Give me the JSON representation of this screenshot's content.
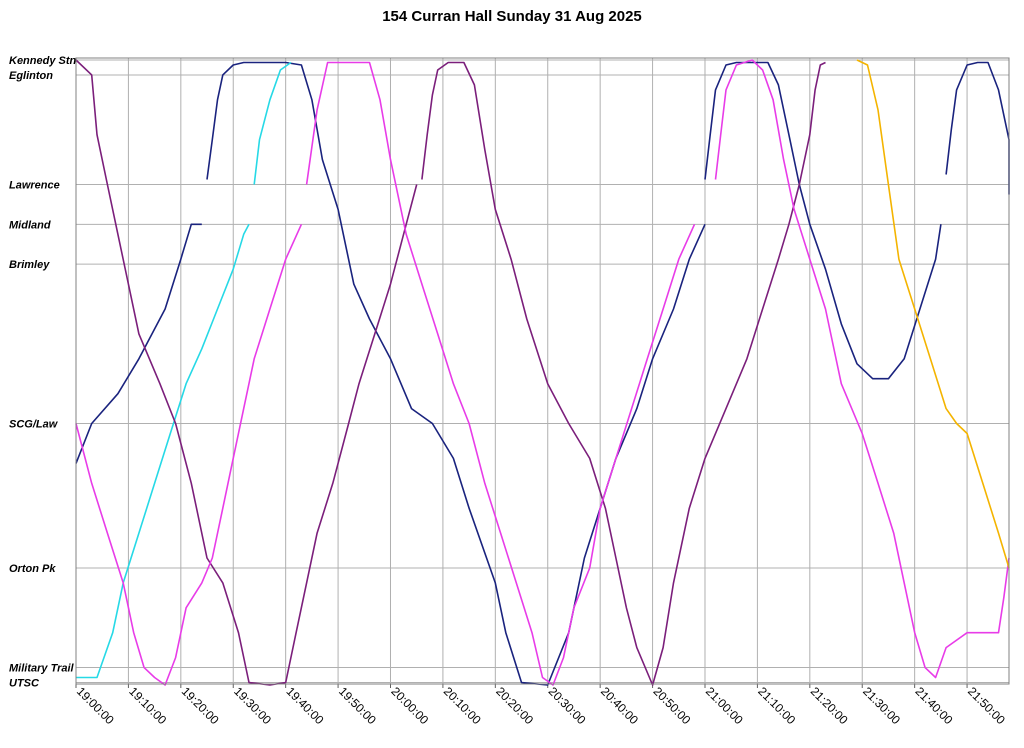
{
  "chart_data": {
    "type": "line",
    "title": "154 Curran Hall Sunday 31 Aug 2025",
    "xlabel": "",
    "ylabel": "",
    "x_axis": {
      "type": "time",
      "min": "19:00:00",
      "max": "21:58:00"
    },
    "x_ticks": [
      "19:00:00",
      "19:10:00",
      "19:20:00",
      "19:30:00",
      "19:40:00",
      "19:50:00",
      "20:00:00",
      "20:10:00",
      "20:20:00",
      "20:30:00",
      "20:40:00",
      "20:50:00",
      "21:00:00",
      "21:10:00",
      "21:20:00",
      "21:30:00",
      "21:40:00",
      "21:50:00"
    ],
    "stops": [
      {
        "name": "Kennedy Stn",
        "pos": 0
      },
      {
        "name": "Eglinton",
        "pos": 0.3
      },
      {
        "name": "Lawrence",
        "pos": 2.5
      },
      {
        "name": "Midland",
        "pos": 3.3
      },
      {
        "name": "Brimley",
        "pos": 4.1
      },
      {
        "name": "SCG/Law",
        "pos": 7.3
      },
      {
        "name": "Orton Pk",
        "pos": 10.2
      },
      {
        "name": "Military Trail",
        "pos": 12.2
      },
      {
        "name": "UTSC",
        "pos": 12.5
      }
    ],
    "y_range": [
      0,
      12.5
    ],
    "grid": true,
    "legend": "none",
    "series": [
      {
        "color": "#1a237e",
        "points": [
          [
            "19:00",
            8.1
          ],
          [
            "19:03",
            7.3
          ],
          [
            "19:08",
            6.7
          ],
          [
            "19:12",
            6.0
          ],
          [
            "19:17",
            5.0
          ],
          [
            "19:20",
            4.0
          ],
          [
            "19:22",
            3.3
          ],
          [
            "19:24",
            3.3
          ]
        ]
      },
      {
        "color": "#1a237e",
        "points": [
          [
            "19:25",
            2.4
          ],
          [
            "19:26",
            1.6
          ],
          [
            "19:27",
            0.8
          ],
          [
            "19:28",
            0.3
          ],
          [
            "19:30",
            0.1
          ],
          [
            "19:32",
            0.05
          ],
          [
            "19:40",
            0.05
          ],
          [
            "19:43",
            0.1
          ],
          [
            "19:45",
            0.8
          ],
          [
            "19:47",
            2.0
          ],
          [
            "19:50",
            3.0
          ],
          [
            "19:53",
            4.5
          ],
          [
            "19:56",
            5.2
          ],
          [
            "20:00",
            6.0
          ],
          [
            "20:04",
            7.0
          ],
          [
            "20:08",
            7.3
          ],
          [
            "20:12",
            8.0
          ],
          [
            "20:15",
            9.0
          ],
          [
            "20:20",
            10.5
          ],
          [
            "20:22",
            11.5
          ],
          [
            "20:25",
            12.5
          ],
          [
            "20:30",
            12.55
          ],
          [
            "20:34",
            11.5
          ],
          [
            "20:37",
            10.0
          ],
          [
            "20:40",
            9.0
          ],
          [
            "20:43",
            8.0
          ],
          [
            "20:47",
            7.0
          ],
          [
            "20:50",
            6.0
          ],
          [
            "20:54",
            5.0
          ],
          [
            "20:57",
            4.0
          ],
          [
            "21:00",
            3.3
          ]
        ]
      },
      {
        "color": "#1a237e",
        "points": [
          [
            "21:00",
            2.4
          ],
          [
            "21:01",
            1.5
          ],
          [
            "21:02",
            0.6
          ],
          [
            "21:04",
            0.1
          ],
          [
            "21:06",
            0.05
          ],
          [
            "21:12",
            0.05
          ],
          [
            "21:14",
            0.5
          ],
          [
            "21:16",
            1.5
          ],
          [
            "21:18",
            2.5
          ],
          [
            "21:20",
            3.3
          ],
          [
            "21:23",
            4.2
          ],
          [
            "21:26",
            5.3
          ],
          [
            "21:29",
            6.1
          ],
          [
            "21:32",
            6.4
          ],
          [
            "21:35",
            6.4
          ],
          [
            "21:38",
            6.0
          ],
          [
            "21:41",
            5.0
          ],
          [
            "21:44",
            4.0
          ],
          [
            "21:45",
            3.3
          ]
        ]
      },
      {
        "color": "#1a237e",
        "points": [
          [
            "21:46",
            2.3
          ],
          [
            "21:47",
            1.4
          ],
          [
            "21:48",
            0.6
          ],
          [
            "21:50",
            0.1
          ],
          [
            "21:52",
            0.05
          ],
          [
            "21:54",
            0.05
          ],
          [
            "21:56",
            0.6
          ],
          [
            "21:58",
            1.6
          ],
          [
            "21:59",
            2.7
          ]
        ]
      },
      {
        "color": "#26d9e6",
        "points": [
          [
            "19:00",
            12.4
          ],
          [
            "19:04",
            12.4
          ],
          [
            "19:07",
            11.5
          ],
          [
            "19:09",
            10.5
          ],
          [
            "19:12",
            9.5
          ],
          [
            "19:15",
            8.5
          ],
          [
            "19:18",
            7.5
          ],
          [
            "19:21",
            6.5
          ],
          [
            "19:24",
            5.8
          ],
          [
            "19:27",
            5.0
          ],
          [
            "19:30",
            4.2
          ],
          [
            "19:32",
            3.5
          ],
          [
            "19:33",
            3.3
          ]
        ]
      },
      {
        "color": "#26d9e6",
        "points": [
          [
            "19:34",
            2.5
          ],
          [
            "19:35",
            1.6
          ],
          [
            "19:37",
            0.8
          ],
          [
            "19:39",
            0.2
          ],
          [
            "19:41",
            0.05
          ]
        ]
      },
      {
        "color": "#7b1f7b",
        "points": [
          [
            "19:00",
            0.0
          ],
          [
            "19:03",
            0.3
          ],
          [
            "19:04",
            1.5
          ],
          [
            "19:06",
            2.5
          ],
          [
            "19:08",
            3.5
          ],
          [
            "19:10",
            4.5
          ],
          [
            "19:12",
            5.5
          ],
          [
            "19:16",
            6.5
          ],
          [
            "19:19",
            7.3
          ],
          [
            "19:22",
            8.5
          ],
          [
            "19:25",
            10.0
          ],
          [
            "19:28",
            10.5
          ],
          [
            "19:31",
            11.5
          ],
          [
            "19:33",
            12.5
          ],
          [
            "19:37",
            12.55
          ],
          [
            "19:40",
            12.5
          ],
          [
            "19:42",
            11.5
          ],
          [
            "19:44",
            10.5
          ],
          [
            "19:46",
            9.5
          ],
          [
            "19:49",
            8.5
          ],
          [
            "19:52",
            7.3
          ],
          [
            "19:54",
            6.5
          ],
          [
            "19:57",
            5.5
          ],
          [
            "20:00",
            4.5
          ],
          [
            "20:03",
            3.3
          ],
          [
            "20:05",
            2.5
          ]
        ]
      },
      {
        "color": "#7b1f7b",
        "points": [
          [
            "20:06",
            2.4
          ],
          [
            "20:07",
            1.5
          ],
          [
            "20:08",
            0.7
          ],
          [
            "20:09",
            0.2
          ],
          [
            "20:11",
            0.05
          ],
          [
            "20:14",
            0.05
          ],
          [
            "20:16",
            0.5
          ],
          [
            "20:18",
            1.8
          ],
          [
            "20:20",
            3.0
          ],
          [
            "20:23",
            4.0
          ],
          [
            "20:26",
            5.2
          ],
          [
            "20:30",
            6.5
          ],
          [
            "20:34",
            7.3
          ],
          [
            "20:38",
            8.0
          ],
          [
            "20:41",
            9.0
          ],
          [
            "20:43",
            10.0
          ],
          [
            "20:45",
            11.0
          ],
          [
            "20:47",
            11.8
          ],
          [
            "20:50",
            12.55
          ],
          [
            "20:52",
            11.8
          ],
          [
            "20:54",
            10.5
          ],
          [
            "20:57",
            9.0
          ],
          [
            "21:00",
            8.0
          ],
          [
            "21:04",
            7.0
          ],
          [
            "21:08",
            6.0
          ],
          [
            "21:11",
            5.0
          ],
          [
            "21:14",
            4.0
          ],
          [
            "21:16",
            3.3
          ],
          [
            "21:18",
            2.5
          ],
          [
            "21:20",
            1.5
          ],
          [
            "21:21",
            0.6
          ],
          [
            "21:22",
            0.1
          ],
          [
            "21:23",
            0.05
          ]
        ]
      },
      {
        "color": "#e83ce8",
        "points": [
          [
            "19:00",
            7.3
          ],
          [
            "19:03",
            8.5
          ],
          [
            "19:06",
            9.5
          ],
          [
            "19:09",
            10.5
          ],
          [
            "19:11",
            11.5
          ],
          [
            "19:13",
            12.2
          ],
          [
            "19:15",
            12.4
          ],
          [
            "19:17",
            12.55
          ],
          [
            "19:19",
            12.0
          ],
          [
            "19:21",
            11.0
          ],
          [
            "19:24",
            10.5
          ],
          [
            "19:26",
            10.0
          ],
          [
            "19:28",
            9.0
          ],
          [
            "19:30",
            8.0
          ],
          [
            "19:32",
            7.0
          ],
          [
            "19:34",
            6.0
          ],
          [
            "19:37",
            5.0
          ],
          [
            "19:40",
            4.0
          ],
          [
            "19:43",
            3.3
          ]
        ]
      },
      {
        "color": "#e83ce8",
        "points": [
          [
            "19:44",
            2.5
          ],
          [
            "19:46",
            1.0
          ],
          [
            "19:48",
            0.05
          ],
          [
            "19:56",
            0.05
          ],
          [
            "19:58",
            0.8
          ],
          [
            "20:00",
            2.0
          ],
          [
            "20:03",
            3.5
          ],
          [
            "20:06",
            4.5
          ],
          [
            "20:09",
            5.5
          ],
          [
            "20:12",
            6.5
          ],
          [
            "20:15",
            7.3
          ],
          [
            "20:18",
            8.5
          ],
          [
            "20:21",
            9.5
          ],
          [
            "20:24",
            10.5
          ],
          [
            "20:27",
            11.5
          ],
          [
            "20:29",
            12.4
          ],
          [
            "20:31",
            12.55
          ],
          [
            "20:33",
            12.0
          ],
          [
            "20:35",
            11.0
          ],
          [
            "20:38",
            10.2
          ],
          [
            "20:40",
            9.0
          ],
          [
            "20:43",
            8.0
          ],
          [
            "20:46",
            7.0
          ],
          [
            "20:49",
            6.0
          ],
          [
            "20:52",
            5.0
          ],
          [
            "20:55",
            4.0
          ],
          [
            "20:58",
            3.3
          ]
        ]
      },
      {
        "color": "#e83ce8",
        "points": [
          [
            "21:02",
            2.4
          ],
          [
            "21:03",
            1.5
          ],
          [
            "21:04",
            0.6
          ],
          [
            "21:06",
            0.1
          ],
          [
            "21:09",
            0.0
          ],
          [
            "21:11",
            0.2
          ],
          [
            "21:13",
            0.8
          ],
          [
            "21:15",
            2.0
          ],
          [
            "21:17",
            3.0
          ],
          [
            "21:20",
            4.0
          ],
          [
            "21:23",
            5.0
          ],
          [
            "21:26",
            6.5
          ],
          [
            "21:30",
            7.5
          ],
          [
            "21:33",
            8.5
          ],
          [
            "21:36",
            9.5
          ],
          [
            "21:38",
            10.5
          ],
          [
            "21:40",
            11.5
          ],
          [
            "21:42",
            12.2
          ],
          [
            "21:44",
            12.4
          ],
          [
            "21:46",
            11.8
          ],
          [
            "21:50",
            11.5
          ],
          [
            "21:56",
            11.5
          ],
          [
            "21:57",
            10.8
          ],
          [
            "21:59",
            10.0
          ]
        ]
      },
      {
        "color": "#f4b400",
        "points": [
          [
            "21:29",
            0.0
          ],
          [
            "21:31",
            0.1
          ],
          [
            "21:33",
            1.0
          ],
          [
            "21:35",
            2.5
          ],
          [
            "21:37",
            4.0
          ],
          [
            "21:40",
            5.0
          ],
          [
            "21:43",
            6.0
          ],
          [
            "21:46",
            7.0
          ],
          [
            "21:48",
            7.3
          ],
          [
            "21:50",
            7.5
          ],
          [
            "21:53",
            8.5
          ],
          [
            "21:56",
            9.5
          ],
          [
            "21:58",
            10.2
          ]
        ]
      }
    ]
  }
}
